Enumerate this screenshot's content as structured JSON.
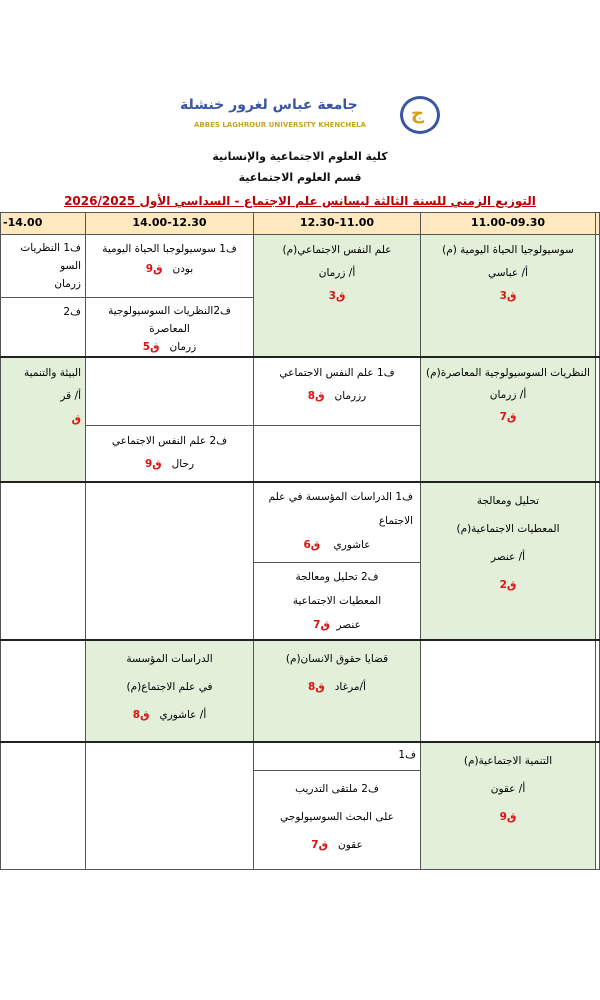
{
  "header": {
    "university_ar": "جامعة عباس لغرور خنشلة",
    "university_en": "ABBES LAGHROUR UNIVERSITY KHENCHELA",
    "faculty": "كلية العلوم الاجتماعية والإنسانية",
    "department": "قسم العلوم الاجتماعية",
    "title": "التوزيع الزمني للسنة الثالثة ليسانس علم الاجتماع  - السداسي الأول 2026/2025"
  },
  "columns": [
    "11.00-09.30",
    "12.30-11.00",
    "14.00-12.30",
    "-14.00"
  ],
  "rows": [
    {
      "c1": {
        "l1": "سوسيولوجيا الحياة اليومية (م)",
        "l2": "أ/ عباسي",
        "room": "ق3"
      },
      "c2": {
        "l1": "علم النفس الاجتماعي(م)",
        "l2": "أ/ زرمان",
        "room": "ق3"
      },
      "c3a": {
        "l1": "ف1 سوسيولوجبا الحياة اليومية",
        "prof": "بودن",
        "room": "ق9"
      },
      "c3b": {
        "l1": "ف2النظريات السوسيولوجية المعاصرة",
        "prof": "زرمان",
        "room": "ق5"
      },
      "c4a": {
        "l1": "ف1 النظريات السو",
        "l2": "زرمان"
      },
      "c4b": {
        "l1": "ف2"
      }
    },
    {
      "c1": {
        "l1": "النظريات السوسيولوجية المعاصرة(م)",
        "l2": "أ/ زرمان",
        "room": "ق7"
      },
      "c2a": {
        "l1": "ف1 علم النفس الاجتماعي",
        "prof": "رزرمان",
        "room": "ق8"
      },
      "c3b": {
        "l1": "ف2 علم النفس الاجتماعي",
        "prof": "رحال",
        "room": "ق9"
      },
      "c4": {
        "l1": "البيئة والتنمية",
        "l2": "أ/ قر",
        "room": "ق"
      }
    },
    {
      "c1": {
        "l1": "تحليل ومعالجة",
        "l2": "المعطيات الاجتماعية(م)",
        "l3": "أ/ عنصر",
        "room": "ق2"
      },
      "c2a": {
        "l1": "ف1 الدراسات المؤسسة في علم",
        "l2": "الاجتماع",
        "prof": "عاشوري",
        "room": "ق6"
      },
      "c2b": {
        "l1": "ف2 تحليل ومعالجة",
        "l2": "المعطيات الاجتماعية",
        "prof": "عنصر",
        "room": "ق7"
      }
    },
    {
      "c2": {
        "l1": "قضايا حقوق الانسان(م)",
        "prof": "أ/مرغاد",
        "room": "ق8"
      },
      "c3": {
        "l1": "الدراسات المؤسسة",
        "l2": "في علم الاجتماع(م)",
        "prof": "أ/ عاشوري",
        "room": "ق8"
      }
    },
    {
      "c1": {
        "l1": "التنمية الاجتماعية(م)",
        "l2": "أ/ عقون",
        "room": "ق9"
      },
      "c2a": {
        "l1": "ف1"
      },
      "c2b": {
        "l1": "ف2 ملتقى التدريب",
        "l2": "على البحث السوسيولوجي",
        "prof": "عقون",
        "room": "ق7"
      }
    }
  ]
}
